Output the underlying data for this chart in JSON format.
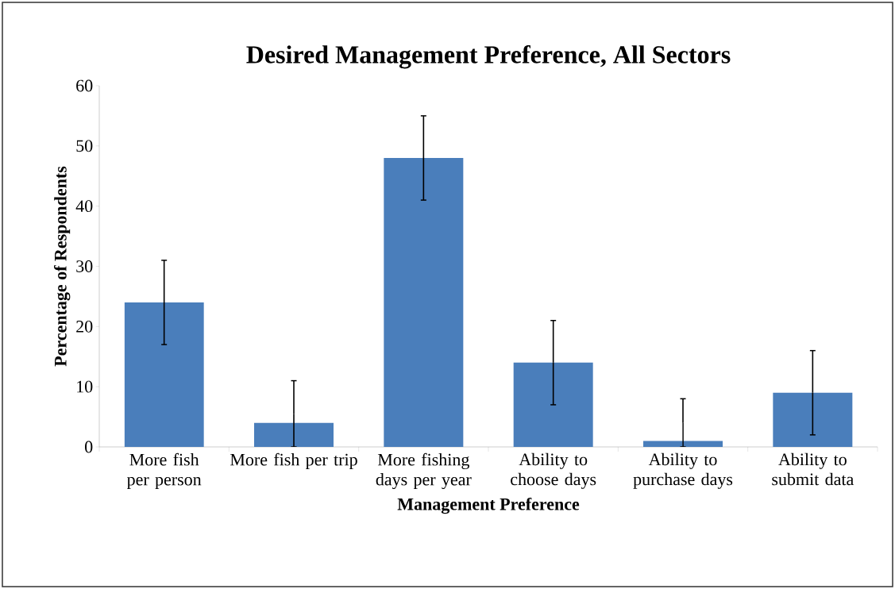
{
  "chart_data": {
    "type": "bar",
    "title": "Desired Management Preference, All Sectors",
    "xlabel": "Management Preference",
    "ylabel": "Percentage of Respondents",
    "categories": [
      "More fish per person",
      "More fish per trip",
      "More fishing days per year",
      "Ability to choose days",
      "Ability to purchase days",
      "Ability to submit data"
    ],
    "values": [
      24,
      4,
      48,
      14,
      1,
      9
    ],
    "errors": [
      7,
      [
        0,
        11
      ],
      7,
      7,
      [
        0,
        8
      ],
      7
    ],
    "color": "#4a7ebb",
    "ylim": [
      0,
      60
    ],
    "yticks": [
      0,
      10,
      20,
      30,
      40,
      50,
      60
    ],
    "grid": false
  }
}
